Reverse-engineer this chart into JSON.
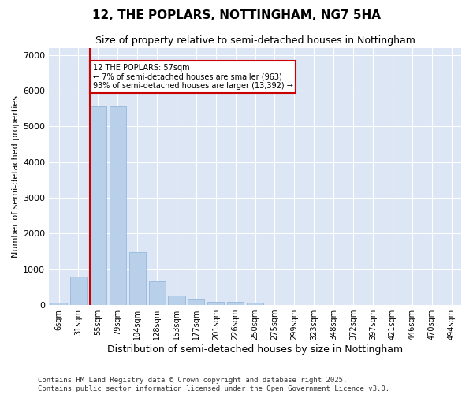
{
  "title": "12, THE POPLARS, NOTTINGHAM, NG7 5HA",
  "subtitle": "Size of property relative to semi-detached houses in Nottingham",
  "xlabel": "Distribution of semi-detached houses by size in Nottingham",
  "ylabel": "Number of semi-detached properties",
  "categories": [
    "6sqm",
    "31sqm",
    "55sqm",
    "79sqm",
    "104sqm",
    "128sqm",
    "153sqm",
    "177sqm",
    "201sqm",
    "226sqm",
    "250sqm",
    "275sqm",
    "299sqm",
    "323sqm",
    "348sqm",
    "372sqm",
    "397sqm",
    "421sqm",
    "446sqm",
    "470sqm",
    "494sqm"
  ],
  "values": [
    60,
    800,
    5550,
    5550,
    1480,
    670,
    270,
    150,
    100,
    80,
    65,
    0,
    0,
    0,
    0,
    0,
    0,
    0,
    0,
    0,
    0
  ],
  "bar_color": "#b8d0ea",
  "bar_edge_color": "#8ab0d8",
  "vline_color": "#cc0000",
  "vline_x_index": 2,
  "annotation_text": "12 THE POPLARS: 57sqm\n← 7% of semi-detached houses are smaller (963)\n93% of semi-detached houses are larger (13,392) →",
  "annotation_box_color": "#ffffff",
  "annotation_box_edge": "#cc0000",
  "ylim": [
    0,
    7200
  ],
  "yticks": [
    0,
    1000,
    2000,
    3000,
    4000,
    5000,
    6000,
    7000
  ],
  "bg_color": "#dce6f5",
  "grid_color": "#ffffff",
  "fig_bg_color": "#ffffff",
  "footer": "Contains HM Land Registry data © Crown copyright and database right 2025.\nContains public sector information licensed under the Open Government Licence v3.0.",
  "title_fontsize": 11,
  "subtitle_fontsize": 9,
  "ylabel_fontsize": 8,
  "xlabel_fontsize": 9,
  "tick_fontsize": 7,
  "ytick_fontsize": 8,
  "footer_fontsize": 6.5,
  "annot_fontsize": 7
}
